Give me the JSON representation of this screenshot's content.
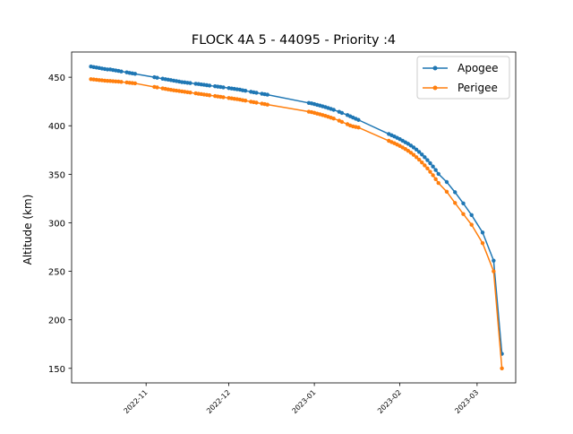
{
  "chart_data": {
    "type": "line",
    "title": "FLOCK 4A 5 - 44095 - Priority :4",
    "xlabel": "",
    "ylabel": "Altitude (km)",
    "x_type": "date",
    "xlim": [
      "2022-10-05",
      "2023-03-15"
    ],
    "ylim": [
      135,
      476
    ],
    "xticks": [
      "2022-11-01",
      "2022-12-01",
      "2023-01-01",
      "2023-02-01",
      "2023-03-01"
    ],
    "xtick_labels": [
      "2022-11",
      "2022-12",
      "2023-01",
      "2023-02",
      "2023-03"
    ],
    "yticks": [
      150,
      200,
      250,
      300,
      350,
      400,
      450
    ],
    "ytick_labels": [
      "150",
      "200",
      "250",
      "300",
      "350",
      "400",
      "450"
    ],
    "grid": false,
    "legend_position": "top-right",
    "series": [
      {
        "name": "Apogee",
        "color": "#1f77b4",
        "points": [
          [
            "2022-10-12",
            461
          ],
          [
            "2022-10-13",
            460.5
          ],
          [
            "2022-10-14",
            460
          ],
          [
            "2022-10-15",
            459.5
          ],
          [
            "2022-10-16",
            459
          ],
          [
            "2022-10-17",
            458.5
          ],
          [
            "2022-10-18",
            458
          ],
          [
            "2022-10-19",
            458
          ],
          [
            "2022-10-20",
            457.5
          ],
          [
            "2022-10-21",
            457
          ],
          [
            "2022-10-22",
            456.5
          ],
          [
            "2022-10-23",
            456
          ],
          [
            "2022-10-25",
            455
          ],
          [
            "2022-10-26",
            454.5
          ],
          [
            "2022-10-27",
            454
          ],
          [
            "2022-10-28",
            453.5
          ],
          [
            "2022-11-04",
            450
          ],
          [
            "2022-11-05",
            449.5
          ],
          [
            "2022-11-07",
            448.5
          ],
          [
            "2022-11-08",
            448
          ],
          [
            "2022-11-09",
            447.5
          ],
          [
            "2022-11-10",
            447
          ],
          [
            "2022-11-11",
            446.5
          ],
          [
            "2022-11-12",
            446
          ],
          [
            "2022-11-13",
            445.5
          ],
          [
            "2022-11-14",
            445
          ],
          [
            "2022-11-15",
            444.7
          ],
          [
            "2022-11-16",
            444.3
          ],
          [
            "2022-11-17",
            444
          ],
          [
            "2022-11-19",
            443.3
          ],
          [
            "2022-11-20",
            443
          ],
          [
            "2022-11-21",
            442.6
          ],
          [
            "2022-11-22",
            442.2
          ],
          [
            "2022-11-23",
            441.8
          ],
          [
            "2022-11-24",
            441.4
          ],
          [
            "2022-11-26",
            440.7
          ],
          [
            "2022-11-27",
            440.3
          ],
          [
            "2022-11-28",
            440
          ],
          [
            "2022-11-29",
            439.6
          ],
          [
            "2022-12-01",
            438.8
          ],
          [
            "2022-12-02",
            438.4
          ],
          [
            "2022-12-03",
            438
          ],
          [
            "2022-12-04",
            437.6
          ],
          [
            "2022-12-05",
            437.2
          ],
          [
            "2022-12-06",
            436.6
          ],
          [
            "2022-12-07",
            436.1
          ],
          [
            "2022-12-09",
            435
          ],
          [
            "2022-12-10",
            434.5
          ],
          [
            "2022-12-11",
            434
          ],
          [
            "2022-12-13",
            433
          ],
          [
            "2022-12-14",
            432.5
          ],
          [
            "2022-12-15",
            432
          ],
          [
            "2022-12-30",
            423.5
          ],
          [
            "2022-12-31",
            423
          ],
          [
            "2023-01-01",
            422.3
          ],
          [
            "2023-01-02",
            421.5
          ],
          [
            "2023-01-03",
            420.8
          ],
          [
            "2023-01-04",
            420
          ],
          [
            "2023-01-05",
            419.2
          ],
          [
            "2023-01-06",
            418.3
          ],
          [
            "2023-01-07",
            417.4
          ],
          [
            "2023-01-08",
            416.4
          ],
          [
            "2023-01-10",
            414.4
          ],
          [
            "2023-01-11",
            413.2
          ],
          [
            "2023-01-13",
            411
          ],
          [
            "2023-01-14",
            409.8
          ],
          [
            "2023-01-15",
            408.5
          ],
          [
            "2023-01-16",
            407.2
          ],
          [
            "2023-01-17",
            406
          ],
          [
            "2023-01-28",
            391.5
          ],
          [
            "2023-01-29",
            390.2
          ],
          [
            "2023-01-30",
            389
          ],
          [
            "2023-01-31",
            387.6
          ],
          [
            "2023-02-01",
            386.2
          ],
          [
            "2023-02-02",
            384.6
          ],
          [
            "2023-02-03",
            383
          ],
          [
            "2023-02-04",
            381.4
          ],
          [
            "2023-02-05",
            379.6
          ],
          [
            "2023-02-06",
            377.6
          ],
          [
            "2023-02-07",
            375.4
          ],
          [
            "2023-02-08",
            373
          ],
          [
            "2023-02-09",
            370.4
          ],
          [
            "2023-02-10",
            367.6
          ],
          [
            "2023-02-11",
            364.6
          ],
          [
            "2023-02-12",
            361.4
          ],
          [
            "2023-02-13",
            358
          ],
          [
            "2023-02-14",
            354.4
          ],
          [
            "2023-02-15",
            350.4
          ],
          [
            "2023-02-18",
            342
          ],
          [
            "2023-02-21",
            331.5
          ],
          [
            "2023-02-24",
            320
          ],
          [
            "2023-02-27",
            308
          ],
          [
            "2023-03-03",
            290
          ],
          [
            "2023-03-07",
            261
          ],
          [
            "2023-03-10",
            165
          ]
        ]
      },
      {
        "name": "Perigee",
        "color": "#ff7f0e",
        "points": [
          [
            "2022-10-12",
            448
          ],
          [
            "2022-10-13",
            447.7
          ],
          [
            "2022-10-14",
            447.4
          ],
          [
            "2022-10-15",
            447.1
          ],
          [
            "2022-10-16",
            446.8
          ],
          [
            "2022-10-17",
            446.5
          ],
          [
            "2022-10-18",
            446.3
          ],
          [
            "2022-10-19",
            446.1
          ],
          [
            "2022-10-20",
            445.9
          ],
          [
            "2022-10-21",
            445.7
          ],
          [
            "2022-10-22",
            445.5
          ],
          [
            "2022-10-23",
            445.2
          ],
          [
            "2022-10-25",
            444.6
          ],
          [
            "2022-10-26",
            444.3
          ],
          [
            "2022-10-27",
            444
          ],
          [
            "2022-10-28",
            443.7
          ],
          [
            "2022-11-04",
            440
          ],
          [
            "2022-11-05",
            439.5
          ],
          [
            "2022-11-07",
            438.5
          ],
          [
            "2022-11-08",
            438
          ],
          [
            "2022-11-09",
            437.5
          ],
          [
            "2022-11-10",
            437
          ],
          [
            "2022-11-11",
            436.6
          ],
          [
            "2022-11-12",
            436.2
          ],
          [
            "2022-11-13",
            435.8
          ],
          [
            "2022-11-14",
            435.4
          ],
          [
            "2022-11-15",
            435
          ],
          [
            "2022-11-16",
            434.6
          ],
          [
            "2022-11-17",
            434.2
          ],
          [
            "2022-11-19",
            433.4
          ],
          [
            "2022-11-20",
            433
          ],
          [
            "2022-11-21",
            432.6
          ],
          [
            "2022-11-22",
            432.2
          ],
          [
            "2022-11-23",
            431.8
          ],
          [
            "2022-11-24",
            431.4
          ],
          [
            "2022-11-26",
            430.6
          ],
          [
            "2022-11-27",
            430.2
          ],
          [
            "2022-11-28",
            429.8
          ],
          [
            "2022-11-29",
            429.4
          ],
          [
            "2022-12-01",
            428.6
          ],
          [
            "2022-12-02",
            428.2
          ],
          [
            "2022-12-03",
            427.8
          ],
          [
            "2022-12-04",
            427.4
          ],
          [
            "2022-12-05",
            427
          ],
          [
            "2022-12-06",
            426.4
          ],
          [
            "2022-12-07",
            425.9
          ],
          [
            "2022-12-09",
            424.8
          ],
          [
            "2022-12-10",
            424.3
          ],
          [
            "2022-12-11",
            423.8
          ],
          [
            "2022-12-13",
            422.8
          ],
          [
            "2022-12-14",
            422.3
          ],
          [
            "2022-12-15",
            421.8
          ],
          [
            "2022-12-30",
            414.5
          ],
          [
            "2022-12-31",
            414
          ],
          [
            "2023-01-01",
            413.3
          ],
          [
            "2023-01-02",
            412.5
          ],
          [
            "2023-01-03",
            411.8
          ],
          [
            "2023-01-04",
            411
          ],
          [
            "2023-01-05",
            410.2
          ],
          [
            "2023-01-06",
            409.3
          ],
          [
            "2023-01-07",
            408.4
          ],
          [
            "2023-01-08",
            407.4
          ],
          [
            "2023-01-10",
            405.2
          ],
          [
            "2023-01-11",
            404
          ],
          [
            "2023-01-13",
            401.6
          ],
          [
            "2023-01-14",
            400.3
          ],
          [
            "2023-01-15",
            399.4
          ],
          [
            "2023-01-16",
            398.8
          ],
          [
            "2023-01-17",
            398.2
          ],
          [
            "2023-01-28",
            384.5
          ],
          [
            "2023-01-29",
            383.2
          ],
          [
            "2023-01-30",
            382
          ],
          [
            "2023-01-31",
            380.6
          ],
          [
            "2023-02-01",
            379.2
          ],
          [
            "2023-02-02",
            377.6
          ],
          [
            "2023-02-03",
            376
          ],
          [
            "2023-02-04",
            374.2
          ],
          [
            "2023-02-05",
            372.2
          ],
          [
            "2023-02-06",
            370
          ],
          [
            "2023-02-07",
            367.6
          ],
          [
            "2023-02-08",
            365
          ],
          [
            "2023-02-09",
            362.2
          ],
          [
            "2023-02-10",
            359.2
          ],
          [
            "2023-02-11",
            356
          ],
          [
            "2023-02-12",
            352.6
          ],
          [
            "2023-02-13",
            349
          ],
          [
            "2023-02-14",
            345
          ],
          [
            "2023-02-15",
            341
          ],
          [
            "2023-02-18",
            332
          ],
          [
            "2023-02-21",
            320.5
          ],
          [
            "2023-02-24",
            309
          ],
          [
            "2023-02-27",
            298
          ],
          [
            "2023-03-03",
            279
          ],
          [
            "2023-03-07",
            250
          ],
          [
            "2023-03-10",
            150
          ]
        ]
      }
    ]
  }
}
